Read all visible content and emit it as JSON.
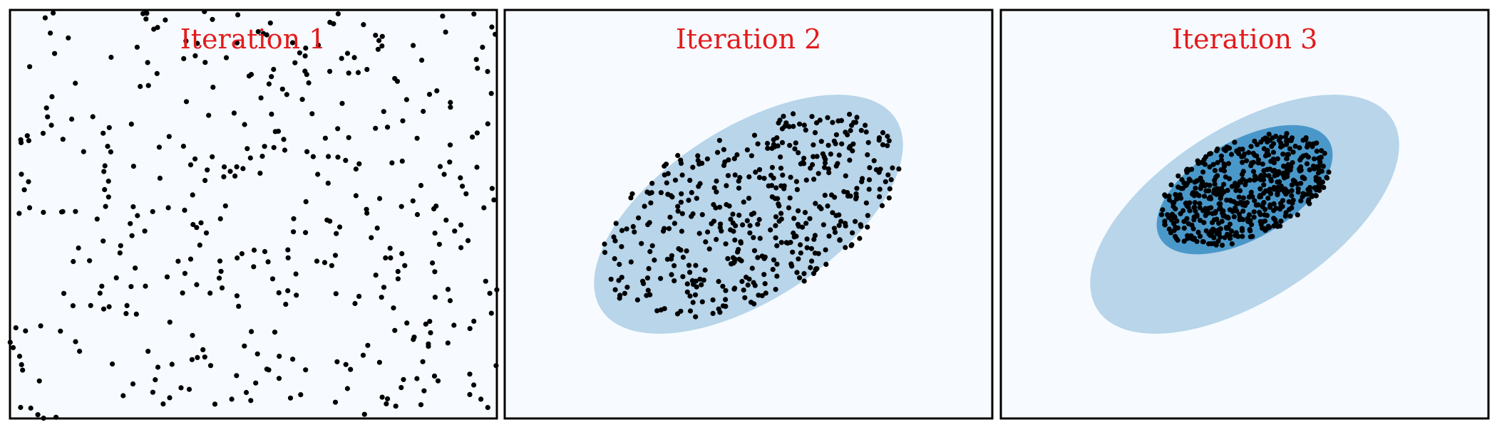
{
  "colors": {
    "background": "#f7fbff",
    "outer_region": "#b8d5ea",
    "inner_region": "#4a98c9",
    "points": "#000000",
    "title": "#e41a1c"
  },
  "chart_data": [
    {
      "type": "scatter",
      "title": "Iteration 1",
      "xlim": [
        -1,
        1
      ],
      "ylim": [
        -1,
        1
      ],
      "axes_ticks_visible": false,
      "grid": false,
      "regions": [],
      "sampling": {
        "distribution": "uniform",
        "n_points": 400,
        "seed": 11
      }
    },
    {
      "type": "scatter",
      "title": "Iteration 2",
      "xlim": [
        -1,
        1
      ],
      "ylim": [
        -1,
        1
      ],
      "axes_ticks_visible": false,
      "grid": false,
      "regions": [
        {
          "name": "elite-region-1",
          "color": "#b8d5ea",
          "center": [
            0.0,
            0.0
          ],
          "semi_axes": [
            0.72,
            0.42
          ],
          "angle_deg": 33
        }
      ],
      "sampling": {
        "distribution": "region",
        "region_index": 0,
        "n_points": 450,
        "seed": 23
      }
    },
    {
      "type": "scatter",
      "title": "Iteration 3",
      "xlim": [
        -1,
        1
      ],
      "ylim": [
        -1,
        1
      ],
      "axes_ticks_visible": false,
      "grid": false,
      "regions": [
        {
          "name": "elite-region-1",
          "color": "#b8d5ea",
          "center": [
            0.0,
            0.0
          ],
          "semi_axes": [
            0.72,
            0.42
          ],
          "angle_deg": 33
        },
        {
          "name": "elite-region-2",
          "color": "#4a98c9",
          "center": [
            0.0,
            0.12
          ],
          "semi_axes": [
            0.4,
            0.24
          ],
          "angle_deg": 30
        }
      ],
      "sampling": {
        "distribution": "region",
        "region_index": 1,
        "n_points": 550,
        "seed": 37
      }
    }
  ]
}
